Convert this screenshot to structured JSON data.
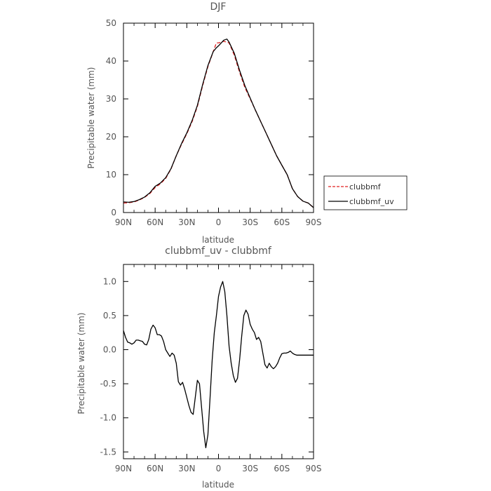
{
  "chart_data": [
    {
      "type": "line",
      "title": "DJF",
      "xlabel": "latitude",
      "ylabel": "Precipitable water (mm)",
      "xlim": [
        90,
        -90
      ],
      "ylim": [
        0,
        50
      ],
      "x_ticks": [
        "90N",
        "60N",
        "30N",
        "0",
        "30S",
        "60S",
        "90S"
      ],
      "y_ticks": [
        "0",
        "10",
        "20",
        "30",
        "40",
        "50"
      ],
      "legend_position": "right",
      "series": [
        {
          "name": "clubbmf",
          "color": "#e02020",
          "dash": "dashed",
          "x": [
            90,
            85,
            80,
            75,
            70,
            65,
            60,
            55,
            50,
            45,
            40,
            35,
            30,
            25,
            20,
            15,
            10,
            5,
            2,
            0,
            -5,
            -10,
            -15,
            -20,
            -25,
            -30,
            -35,
            -40,
            -45,
            -50,
            -55,
            -60,
            -65,
            -70,
            -75,
            -80,
            -85,
            -90
          ],
          "values": [
            2.5,
            2.6,
            2.8,
            3.3,
            4.0,
            5.0,
            6.6,
            7.6,
            9.0,
            11.5,
            15.0,
            18.0,
            20.8,
            24.0,
            28.0,
            33.5,
            38.5,
            42.5,
            44.8,
            44.8,
            45.2,
            44.8,
            41.5,
            37.0,
            33.0,
            30.0,
            27.0,
            24.0,
            21.0,
            18.0,
            15.0,
            12.5,
            10.0,
            6.3,
            4.2,
            3.0,
            2.5,
            1.3
          ]
        },
        {
          "name": "clubbmf_uv",
          "color": "#000000",
          "dash": "solid",
          "x": [
            90,
            85,
            80,
            75,
            70,
            65,
            60,
            55,
            50,
            45,
            40,
            35,
            30,
            25,
            20,
            15,
            10,
            5,
            2,
            0,
            -5,
            -8,
            -10,
            -15,
            -20,
            -25,
            -30,
            -35,
            -40,
            -45,
            -50,
            -55,
            -60,
            -65,
            -70,
            -75,
            -80,
            -85,
            -90
          ],
          "values": [
            2.8,
            2.7,
            2.9,
            3.4,
            4.1,
            5.2,
            6.9,
            7.8,
            9.2,
            11.6,
            15.0,
            18.2,
            21.0,
            24.3,
            28.3,
            33.8,
            38.8,
            42.5,
            43.5,
            44.0,
            45.5,
            45.8,
            45.0,
            42.0,
            37.5,
            33.5,
            30.2,
            27.0,
            24.0,
            21.0,
            18.0,
            15.0,
            12.5,
            10.0,
            6.3,
            4.2,
            3.0,
            2.5,
            1.3
          ]
        }
      ]
    },
    {
      "type": "line",
      "title": "clubbmf_uv - clubbmf",
      "xlabel": "latitude",
      "ylabel": "Precipitable water (mm)",
      "xlim": [
        90,
        -90
      ],
      "ylim": [
        -1.6,
        1.25
      ],
      "x_ticks": [
        "90N",
        "60N",
        "30N",
        "0",
        "30S",
        "60S",
        "90S"
      ],
      "y_ticks": [
        "1.0",
        "0.5",
        "0.0",
        "-0.5",
        "-1.0",
        "-1.5"
      ],
      "y_tick_values": [
        1.0,
        0.5,
        0.0,
        -0.5,
        -1.0,
        -1.5
      ],
      "series": [
        {
          "color": "#000000",
          "dash": "solid",
          "x": [
            90,
            88,
            86,
            84,
            82,
            80,
            78,
            76,
            74,
            72,
            70,
            68,
            66,
            64,
            62,
            60,
            58,
            56,
            54,
            52,
            50,
            48,
            46,
            44,
            42,
            40,
            38,
            36,
            34,
            32,
            30,
            28,
            26,
            24,
            22,
            20,
            18,
            16,
            14,
            12,
            10,
            8,
            6,
            4,
            2,
            0,
            -2,
            -4,
            -6,
            -8,
            -10,
            -12,
            -14,
            -16,
            -18,
            -20,
            -22,
            -24,
            -26,
            -28,
            -30,
            -32,
            -34,
            -36,
            -38,
            -40,
            -42,
            -44,
            -46,
            -48,
            -50,
            -52,
            -54,
            -56,
            -58,
            -60,
            -62,
            -64,
            -66,
            -68,
            -70,
            -72,
            -74,
            -76,
            -78,
            -80,
            -82,
            -84,
            -86,
            -88,
            -90
          ],
          "values": [
            0.28,
            0.18,
            0.11,
            0.1,
            0.08,
            0.1,
            0.14,
            0.14,
            0.13,
            0.12,
            0.08,
            0.07,
            0.15,
            0.3,
            0.36,
            0.32,
            0.22,
            0.22,
            0.2,
            0.12,
            0.0,
            -0.05,
            -0.1,
            -0.05,
            -0.08,
            -0.2,
            -0.47,
            -0.52,
            -0.48,
            -0.58,
            -0.7,
            -0.82,
            -0.92,
            -0.95,
            -0.7,
            -0.45,
            -0.5,
            -0.85,
            -1.2,
            -1.44,
            -1.25,
            -0.7,
            -0.15,
            0.25,
            0.5,
            0.78,
            0.92,
            1.0,
            0.85,
            0.5,
            0.05,
            -0.2,
            -0.38,
            -0.48,
            -0.42,
            -0.15,
            0.2,
            0.5,
            0.58,
            0.52,
            0.37,
            0.3,
            0.25,
            0.15,
            0.18,
            0.12,
            -0.05,
            -0.22,
            -0.27,
            -0.2,
            -0.25,
            -0.28,
            -0.25,
            -0.2,
            -0.12,
            -0.06,
            -0.05,
            -0.05,
            -0.04,
            -0.02,
            -0.05,
            -0.07,
            -0.08,
            -0.08,
            -0.08,
            -0.08,
            -0.08,
            -0.08,
            -0.08,
            -0.08,
            -0.08
          ]
        }
      ]
    }
  ]
}
